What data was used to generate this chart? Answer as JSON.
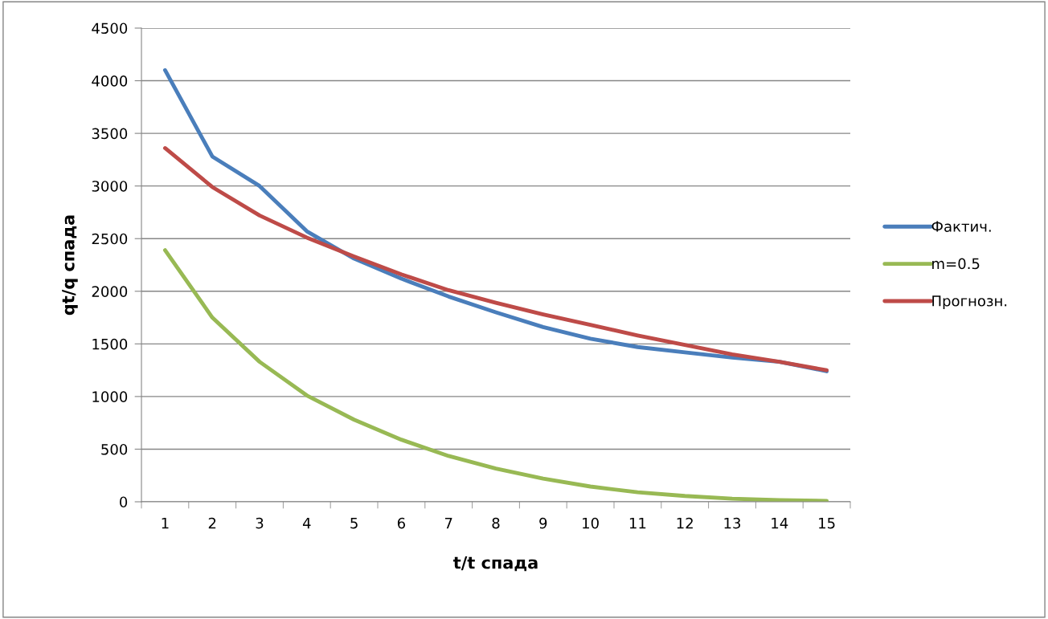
{
  "chart_data": {
    "type": "line",
    "xlabel": "t/t спада",
    "ylabel": "qt/q спада",
    "categories": [
      "1",
      "2",
      "3",
      "4",
      "5",
      "6",
      "7",
      "8",
      "9",
      "10",
      "11",
      "12",
      "13",
      "14",
      "15"
    ],
    "ylim": [
      0,
      4500
    ],
    "yticks": [
      0,
      500,
      1000,
      1500,
      2000,
      2500,
      3000,
      3500,
      4000,
      4500
    ],
    "grid": "y",
    "legend": "right",
    "marker": "none",
    "line_style": "solid",
    "series": [
      {
        "name": "Фактич.",
        "color": "#4a7ebb",
        "values": [
          4100,
          3280,
          3000,
          2570,
          2310,
          2120,
          1950,
          1800,
          1660,
          1550,
          1470,
          1420,
          1370,
          1330,
          1240
        ]
      },
      {
        "name": "m=0.5",
        "color": "#98b954",
        "values": [
          2390,
          1750,
          1330,
          1010,
          780,
          590,
          435,
          315,
          220,
          145,
          90,
          55,
          30,
          15,
          8
        ]
      },
      {
        "name": "Прогнозн.",
        "color": "#be4b48",
        "values": [
          3360,
          2990,
          2720,
          2510,
          2330,
          2160,
          2010,
          1890,
          1780,
          1680,
          1580,
          1490,
          1400,
          1330,
          1250
        ]
      }
    ]
  }
}
